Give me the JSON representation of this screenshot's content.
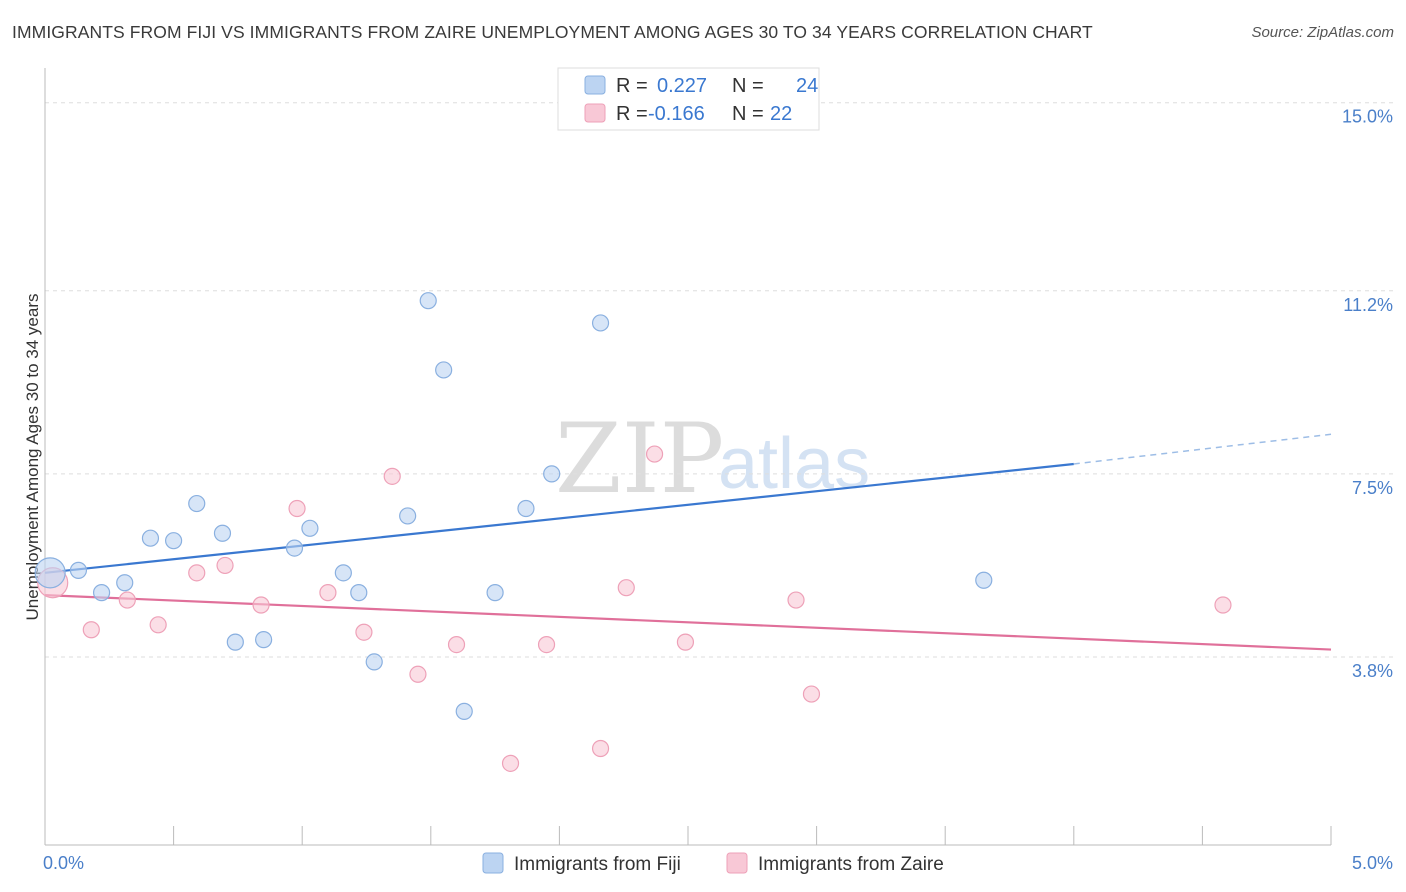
{
  "title": "IMMIGRANTS FROM FIJI VS IMMIGRANTS FROM ZAIRE UNEMPLOYMENT AMONG AGES 30 TO 34 YEARS CORRELATION CHART",
  "source": "Source: ZipAtlas.com",
  "watermark": {
    "zip": "ZIP",
    "atlas": "atlas"
  },
  "colors": {
    "fiji_fill": "#bcd4f2",
    "fiji_stroke": "#8ab0e0",
    "fiji_line": "#3a78d0",
    "zaire_fill": "#f8c8d6",
    "zaire_stroke": "#eea1b8",
    "zaire_line": "#e0709a",
    "grid": "#dedede",
    "tick_label": "#4a7fc9"
  },
  "legend": {
    "rows": [
      {
        "r_label": "R =",
        "r_value": "0.227",
        "n_label": "N =",
        "n_value": "24"
      },
      {
        "r_label": "R =",
        "r_value": "-0.166",
        "n_label": "N =",
        "n_value": "22"
      }
    ]
  },
  "chart_data": {
    "type": "scatter",
    "title": "IMMIGRANTS FROM FIJI VS IMMIGRANTS FROM ZAIRE UNEMPLOYMENT AMONG AGES 30 TO 34 YEARS CORRELATION CHART",
    "xlabel": "",
    "ylabel": "Unemployment Among Ages 30 to 34 years",
    "xlim": [
      0,
      5
    ],
    "ylim": [
      0,
      15.5
    ],
    "x_tick_labels": [
      {
        "value": 0,
        "label": "0.0%"
      },
      {
        "value": 5,
        "label": "5.0%"
      }
    ],
    "y_ticks": [
      {
        "value": 3.8,
        "label": "3.8%"
      },
      {
        "value": 7.5,
        "label": "7.5%"
      },
      {
        "value": 11.2,
        "label": "11.2%"
      },
      {
        "value": 15.0,
        "label": "15.0%"
      }
    ],
    "series": [
      {
        "name": "Immigrants from Fiji",
        "r": 0.227,
        "n": 24,
        "trend": {
          "x0": 0,
          "y0": 5.5,
          "x1": 4.0,
          "y1": 7.7,
          "dash_x1": 5.0,
          "dash_y1": 8.3
        },
        "points": [
          {
            "x": 0.02,
            "y": 5.5,
            "large": true
          },
          {
            "x": 0.13,
            "y": 5.55
          },
          {
            "x": 0.22,
            "y": 5.1
          },
          {
            "x": 0.31,
            "y": 5.3
          },
          {
            "x": 0.41,
            "y": 6.2
          },
          {
            "x": 0.5,
            "y": 6.15
          },
          {
            "x": 0.59,
            "y": 6.9
          },
          {
            "x": 0.69,
            "y": 6.3
          },
          {
            "x": 0.74,
            "y": 4.1
          },
          {
            "x": 0.85,
            "y": 4.15
          },
          {
            "x": 0.97,
            "y": 6.0
          },
          {
            "x": 1.03,
            "y": 6.4
          },
          {
            "x": 1.16,
            "y": 5.5
          },
          {
            "x": 1.22,
            "y": 5.1
          },
          {
            "x": 1.28,
            "y": 3.7
          },
          {
            "x": 1.41,
            "y": 6.65
          },
          {
            "x": 1.49,
            "y": 11.0
          },
          {
            "x": 1.55,
            "y": 9.6
          },
          {
            "x": 1.63,
            "y": 2.7
          },
          {
            "x": 1.75,
            "y": 5.1
          },
          {
            "x": 1.87,
            "y": 6.8
          },
          {
            "x": 1.97,
            "y": 7.5
          },
          {
            "x": 2.16,
            "y": 10.55
          },
          {
            "x": 3.65,
            "y": 5.35
          }
        ]
      },
      {
        "name": "Immigrants from Zaire",
        "r": -0.166,
        "n": 22,
        "trend": {
          "x0": 0,
          "y0": 5.05,
          "x1": 5.0,
          "y1": 3.95
        },
        "points": [
          {
            "x": 0.03,
            "y": 5.3,
            "large": true
          },
          {
            "x": 0.18,
            "y": 4.35
          },
          {
            "x": 0.32,
            "y": 4.95
          },
          {
            "x": 0.44,
            "y": 4.45
          },
          {
            "x": 0.59,
            "y": 5.5
          },
          {
            "x": 0.7,
            "y": 5.65
          },
          {
            "x": 0.84,
            "y": 4.85
          },
          {
            "x": 0.98,
            "y": 6.8
          },
          {
            "x": 1.1,
            "y": 5.1
          },
          {
            "x": 1.24,
            "y": 4.3
          },
          {
            "x": 1.35,
            "y": 7.45
          },
          {
            "x": 1.45,
            "y": 3.45
          },
          {
            "x": 1.6,
            "y": 4.05
          },
          {
            "x": 1.81,
            "y": 1.65
          },
          {
            "x": 1.95,
            "y": 4.05
          },
          {
            "x": 2.16,
            "y": 1.95
          },
          {
            "x": 2.26,
            "y": 5.2
          },
          {
            "x": 2.37,
            "y": 7.9
          },
          {
            "x": 2.49,
            "y": 4.1
          },
          {
            "x": 2.92,
            "y": 4.95
          },
          {
            "x": 2.98,
            "y": 3.05
          },
          {
            "x": 4.58,
            "y": 4.85
          }
        ]
      }
    ]
  }
}
